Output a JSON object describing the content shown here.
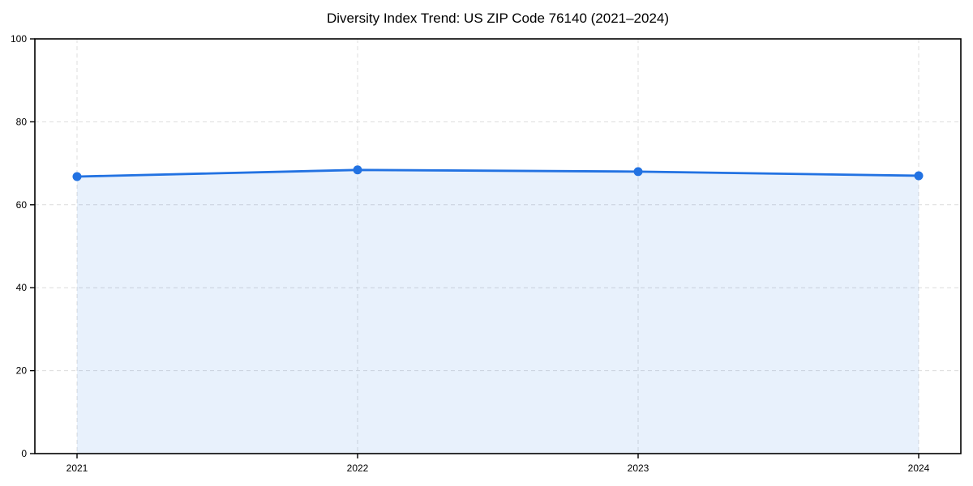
{
  "chart_data": {
    "type": "area",
    "title": "Diversity Index Trend: US ZIP Code 76140 (2021–2024)",
    "x": [
      "2021",
      "2022",
      "2023",
      "2024"
    ],
    "series": [
      {
        "name": "Diversity Index",
        "values": [
          66.8,
          68.4,
          68.0,
          67.0
        ]
      }
    ],
    "xlabel": "",
    "ylabel": "",
    "ylim": [
      0,
      100
    ],
    "yticks": [
      0,
      20,
      40,
      60,
      80,
      100
    ],
    "grid": true,
    "grid_style": "dashed",
    "legend": "none",
    "line_color": "#2272e2",
    "marker_color": "#2272e2",
    "fill_color": "rgba(34,114,226,0.10)",
    "grid_color": "#dcdcdc",
    "axis_color": "#000000",
    "background_color": "#ffffff"
  }
}
